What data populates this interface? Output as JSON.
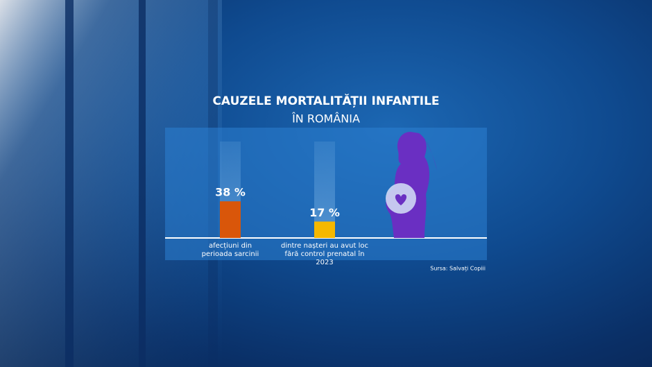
{
  "chart_data": {
    "type": "bar",
    "title": "CAUZELE MORTALITĂȚII INFANTILE",
    "subtitle": "ÎN ROMÂNIA",
    "categories": [
      "afecțiuni din perioada sarcinii",
      "dintre nașteri au avut loc fără control prenatal în 2023"
    ],
    "values": [
      38,
      17
    ],
    "value_labels": [
      "38 %",
      "17 %"
    ],
    "colors": [
      "#d9560a",
      "#f5b800"
    ],
    "ylim": [
      0,
      100
    ],
    "source": "Sursa: Salvați Copiii"
  }
}
